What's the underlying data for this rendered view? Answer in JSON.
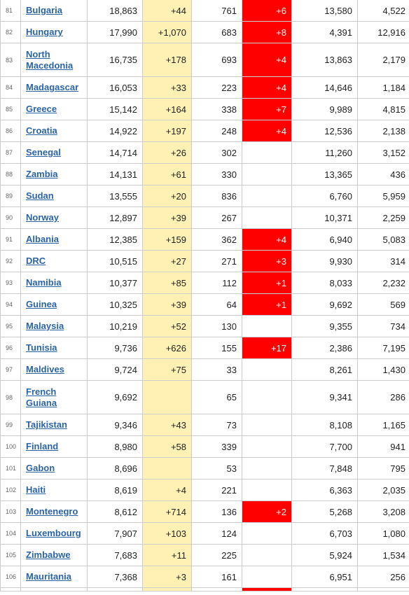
{
  "colors": {
    "link": "#2b64a4",
    "new_cases_bg": "#fff0b3",
    "new_deaths_bg": "#ff0000"
  },
  "rows": [
    {
      "num": "81",
      "country": "Bulgaria",
      "total": "18,863",
      "new": "+44",
      "deaths": "761",
      "new_deaths": "+6",
      "recovered": "13,580",
      "active": "4,522"
    },
    {
      "num": "82",
      "country": "Hungary",
      "total": "17,990",
      "new": "+1,070",
      "deaths": "683",
      "new_deaths": "+8",
      "recovered": "4,391",
      "active": "12,916"
    },
    {
      "num": "83",
      "country": "North Macedonia",
      "total": "16,735",
      "new": "+178",
      "deaths": "693",
      "new_deaths": "+4",
      "recovered": "13,863",
      "active": "2,179"
    },
    {
      "num": "84",
      "country": "Madagascar",
      "total": "16,053",
      "new": "+33",
      "deaths": "223",
      "new_deaths": "+4",
      "recovered": "14,646",
      "active": "1,184"
    },
    {
      "num": "85",
      "country": "Greece",
      "total": "15,142",
      "new": "+164",
      "deaths": "338",
      "new_deaths": "+7",
      "recovered": "9,989",
      "active": "4,815"
    },
    {
      "num": "86",
      "country": "Croatia",
      "total": "14,922",
      "new": "+197",
      "deaths": "248",
      "new_deaths": "+4",
      "recovered": "12,536",
      "active": "2,138"
    },
    {
      "num": "87",
      "country": "Senegal",
      "total": "14,714",
      "new": "+26",
      "deaths": "302",
      "new_deaths": "",
      "recovered": "11,260",
      "active": "3,152"
    },
    {
      "num": "88",
      "country": "Zambia",
      "total": "14,131",
      "new": "+61",
      "deaths": "330",
      "new_deaths": "",
      "recovered": "13,365",
      "active": "436"
    },
    {
      "num": "89",
      "country": "Sudan",
      "total": "13,555",
      "new": "+20",
      "deaths": "836",
      "new_deaths": "",
      "recovered": "6,760",
      "active": "5,959"
    },
    {
      "num": "90",
      "country": "Norway",
      "total": "12,897",
      "new": "+39",
      "deaths": "267",
      "new_deaths": "",
      "recovered": "10,371",
      "active": "2,259"
    },
    {
      "num": "91",
      "country": "Albania",
      "total": "12,385",
      "new": "+159",
      "deaths": "362",
      "new_deaths": "+4",
      "recovered": "6,940",
      "active": "5,083"
    },
    {
      "num": "92",
      "country": "DRC",
      "total": "10,515",
      "new": "+27",
      "deaths": "271",
      "new_deaths": "+3",
      "recovered": "9,930",
      "active": "314"
    },
    {
      "num": "93",
      "country": "Namibia",
      "total": "10,377",
      "new": "+85",
      "deaths": "112",
      "new_deaths": "+1",
      "recovered": "8,033",
      "active": "2,232"
    },
    {
      "num": "94",
      "country": "Guinea",
      "total": "10,325",
      "new": "+39",
      "deaths": "64",
      "new_deaths": "+1",
      "recovered": "9,692",
      "active": "569"
    },
    {
      "num": "95",
      "country": "Malaysia",
      "total": "10,219",
      "new": "+52",
      "deaths": "130",
      "new_deaths": "",
      "recovered": "9,355",
      "active": "734"
    },
    {
      "num": "96",
      "country": "Tunisia",
      "total": "9,736",
      "new": "+626",
      "deaths": "155",
      "new_deaths": "+17",
      "recovered": "2,386",
      "active": "7,195"
    },
    {
      "num": "97",
      "country": "Maldives",
      "total": "9,724",
      "new": "+75",
      "deaths": "33",
      "new_deaths": "",
      "recovered": "8,261",
      "active": "1,430"
    },
    {
      "num": "98",
      "country": "French Guiana",
      "total": "9,692",
      "new": "",
      "deaths": "65",
      "new_deaths": "",
      "recovered": "9,341",
      "active": "286"
    },
    {
      "num": "99",
      "country": "Tajikistan",
      "total": "9,346",
      "new": "+43",
      "deaths": "73",
      "new_deaths": "",
      "recovered": "8,108",
      "active": "1,165"
    },
    {
      "num": "100",
      "country": "Finland",
      "total": "8,980",
      "new": "+58",
      "deaths": "339",
      "new_deaths": "",
      "recovered": "7,700",
      "active": "941"
    },
    {
      "num": "101",
      "country": "Gabon",
      "total": "8,696",
      "new": "",
      "deaths": "53",
      "new_deaths": "",
      "recovered": "7,848",
      "active": "795"
    },
    {
      "num": "102",
      "country": "Haiti",
      "total": "8,619",
      "new": "+4",
      "deaths": "221",
      "new_deaths": "",
      "recovered": "6,363",
      "active": "2,035"
    },
    {
      "num": "103",
      "country": "Montenegro",
      "total": "8,612",
      "new": "+714",
      "deaths": "136",
      "new_deaths": "+2",
      "recovered": "5,268",
      "active": "3,208"
    },
    {
      "num": "104",
      "country": "Luxembourg",
      "total": "7,907",
      "new": "+103",
      "deaths": "124",
      "new_deaths": "",
      "recovered": "6,703",
      "active": "1,080"
    },
    {
      "num": "105",
      "country": "Zimbabwe",
      "total": "7,683",
      "new": "+11",
      "deaths": "225",
      "new_deaths": "",
      "recovered": "5,924",
      "active": "1,534"
    },
    {
      "num": "106",
      "country": "Mauritania",
      "total": "7,368",
      "new": "+3",
      "deaths": "161",
      "new_deaths": "",
      "recovered": "6,951",
      "active": "256"
    },
    {
      "num": "",
      "country": "",
      "total": "",
      "new": "",
      "deaths": "",
      "new_deaths": "",
      "recovered": "",
      "active": ""
    }
  ]
}
